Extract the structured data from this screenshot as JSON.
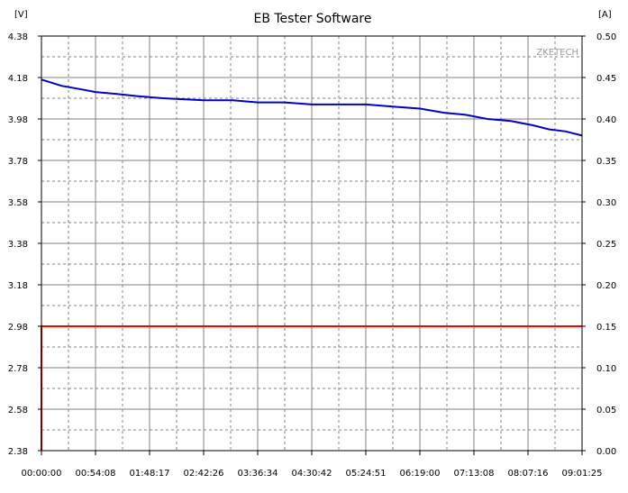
{
  "chart_data": {
    "type": "line",
    "title": "EB Tester Software",
    "watermark": "ZKETECH",
    "left_axis": {
      "unit_label": "[V]",
      "range": [
        2.38,
        4.38
      ],
      "ticks": [
        "4.38",
        "4.18",
        "3.98",
        "3.78",
        "3.58",
        "3.38",
        "3.18",
        "2.98",
        "2.78",
        "2.58",
        "2.38"
      ]
    },
    "right_axis": {
      "unit_label": "[A]",
      "range": [
        0.0,
        0.5
      ],
      "ticks": [
        "0.50",
        "0.45",
        "0.40",
        "0.35",
        "0.30",
        "0.25",
        "0.20",
        "0.15",
        "0.10",
        "0.05",
        "0.00"
      ]
    },
    "x_axis": {
      "range_seconds": [
        0,
        32485
      ],
      "ticks": [
        "00:00:00",
        "00:54:08",
        "01:48:17",
        "02:42:26",
        "03:36:34",
        "04:30:42",
        "05:24:51",
        "06:19:00",
        "07:13:08",
        "08:07:16",
        "09:01:25"
      ]
    },
    "grid": true,
    "series": [
      {
        "axis": "left",
        "color": "#0000cc",
        "x_seconds": [
          0,
          400,
          1200,
          2600,
          3250,
          4600,
          5800,
          7300,
          9750,
          11500,
          13000,
          14600,
          16250,
          18000,
          19500,
          21100,
          22750,
          24200,
          25500,
          26800,
          28200,
          29500,
          30500,
          31500,
          32485
        ],
        "values": [
          4.17,
          4.16,
          4.14,
          4.12,
          4.11,
          4.1,
          4.09,
          4.08,
          4.07,
          4.07,
          4.06,
          4.06,
          4.05,
          4.05,
          4.05,
          4.04,
          4.03,
          4.01,
          4.0,
          3.98,
          3.97,
          3.95,
          3.93,
          3.92,
          3.9
        ]
      },
      {
        "axis": "right",
        "color": "#ff0000",
        "x_seconds": [
          0,
          0,
          32485
        ],
        "values": [
          0.0,
          0.15,
          0.15
        ]
      }
    ]
  }
}
